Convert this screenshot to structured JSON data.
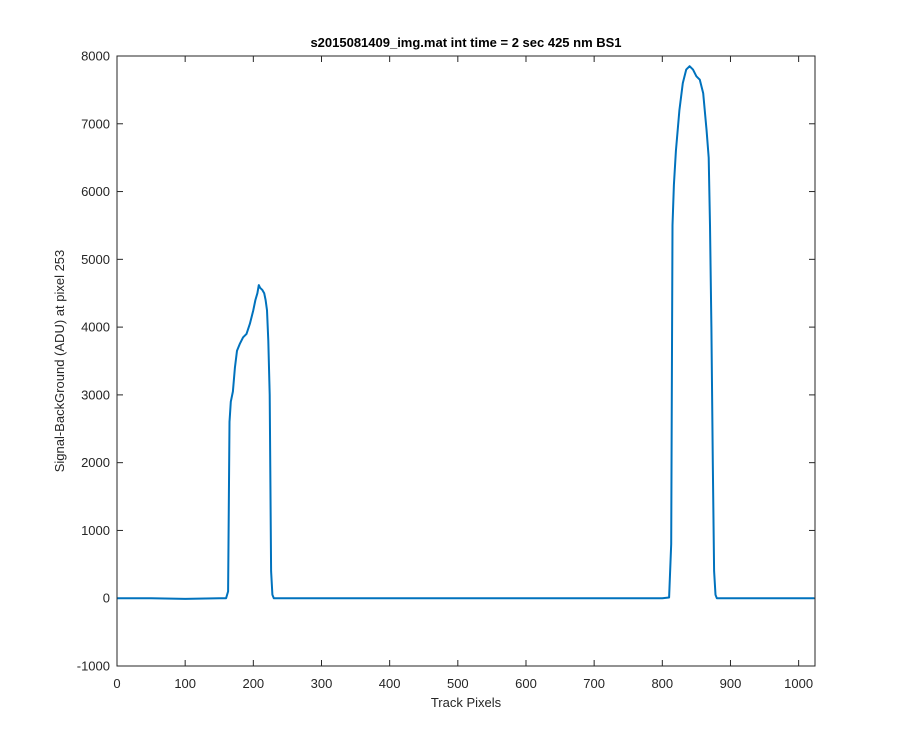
{
  "chart_data": {
    "type": "line",
    "title": "s2015081409_img.mat int time = 2 sec  425 nm BS1",
    "xlabel": "Track Pixels",
    "ylabel": "Signal-BackGround (ADU) at pixel 253",
    "xlim": [
      0,
      1024
    ],
    "ylim": [
      -1000,
      8000
    ],
    "xticks": [
      0,
      100,
      200,
      300,
      400,
      500,
      600,
      700,
      800,
      900,
      1000
    ],
    "yticks": [
      -1000,
      0,
      1000,
      2000,
      3000,
      4000,
      5000,
      6000,
      7000,
      8000
    ],
    "grid": false,
    "legend": "none",
    "line_color": "#0072BD",
    "series": [
      {
        "x": [
          0,
          50,
          100,
          150,
          160,
          163,
          165,
          167,
          170,
          173,
          176,
          180,
          185,
          190,
          195,
          200,
          203,
          206,
          208,
          210,
          213,
          216,
          218,
          220,
          222,
          224,
          226,
          228,
          230,
          240,
          300,
          400,
          500,
          600,
          700,
          800,
          810,
          813,
          815,
          817,
          820,
          825,
          830,
          835,
          840,
          845,
          850,
          855,
          860,
          865,
          868,
          870,
          872,
          874,
          876,
          878,
          880,
          900,
          950,
          1000,
          1023
        ],
        "y": [
          0,
          0,
          -10,
          0,
          0,
          100,
          2600,
          2900,
          3050,
          3400,
          3650,
          3750,
          3850,
          3900,
          4050,
          4250,
          4400,
          4500,
          4620,
          4580,
          4550,
          4500,
          4400,
          4250,
          3800,
          3000,
          400,
          50,
          0,
          0,
          0,
          0,
          0,
          0,
          0,
          0,
          10,
          800,
          5500,
          6100,
          6600,
          7200,
          7600,
          7800,
          7850,
          7800,
          7700,
          7650,
          7450,
          6900,
          6500,
          5500,
          4000,
          2000,
          400,
          50,
          0,
          0,
          0,
          0,
          0
        ]
      }
    ]
  }
}
